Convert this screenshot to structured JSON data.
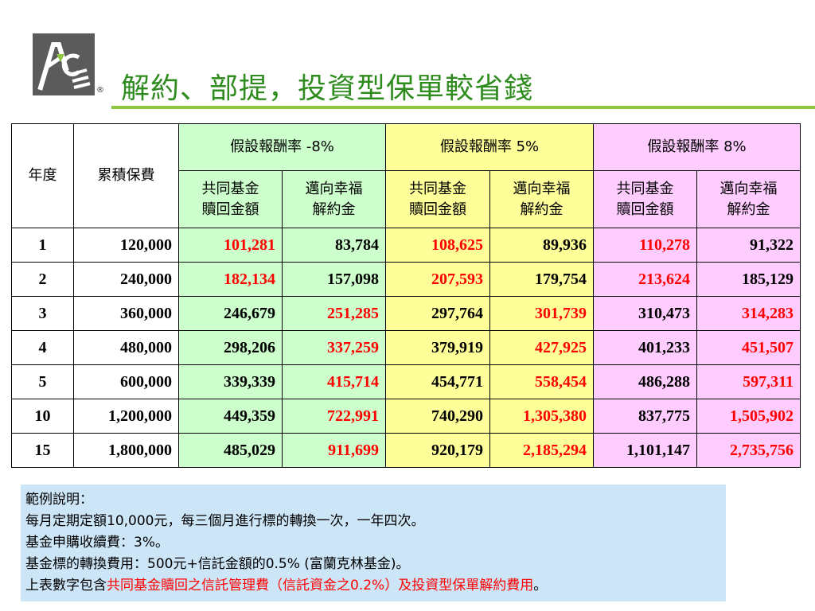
{
  "title": "解約、部提，投資型保單較省錢",
  "logo": {
    "name": "ACE logo",
    "reg_mark": "®",
    "color": "#5b5b5b",
    "accent": "#8dc63f"
  },
  "table": {
    "col_year": "年度",
    "col_premium": "累積保費",
    "groups": [
      {
        "label": "假設報酬率  -8%",
        "color": "#ccffcc"
      },
      {
        "label": "假設報酬率  5%",
        "color": "#ffff99"
      },
      {
        "label": "假設報酬率  8%",
        "color": "#ffccff"
      }
    ],
    "sub_fund": "共同基金\n贖回金額",
    "sub_policy": "邁向幸福\n解約金",
    "rows": [
      {
        "year": "1",
        "premium": "120,000",
        "v": [
          "101,281",
          "83,784",
          "108,625",
          "89,936",
          "110,278",
          "91,322"
        ]
      },
      {
        "year": "2",
        "premium": "240,000",
        "v": [
          "182,134",
          "157,098",
          "207,593",
          "179,754",
          "213,624",
          "185,129"
        ]
      },
      {
        "year": "3",
        "premium": "360,000",
        "v": [
          "246,679",
          "251,285",
          "297,764",
          "301,739",
          "310,473",
          "314,283"
        ]
      },
      {
        "year": "4",
        "premium": "480,000",
        "v": [
          "298,206",
          "337,259",
          "379,919",
          "427,925",
          "401,233",
          "451,507"
        ]
      },
      {
        "year": "5",
        "premium": "600,000",
        "v": [
          "339,339",
          "415,714",
          "454,771",
          "558,454",
          "486,288",
          "597,311"
        ]
      },
      {
        "year": "10",
        "premium": "1,200,000",
        "v": [
          "449,359",
          "722,991",
          "740,290",
          "1,305,380",
          "837,775",
          "1,505,902"
        ]
      },
      {
        "year": "15",
        "premium": "1,800,000",
        "v": [
          "485,029",
          "911,699",
          "920,179",
          "2,185,294",
          "1,101,147",
          "2,735,756"
        ]
      }
    ]
  },
  "notes": {
    "heading": "範例說明：",
    "line1": "每月定期定額10,000元，每三個月進行標的轉換一次，一年四次。",
    "line2": "基金申購收續費：3%。",
    "line3": "基金標的轉換費用：500元+信託金額的0.5% (富蘭克林基金)。",
    "line4_prefix": "上表數字包含",
    "line4_red": "共同基金贖回之信託管理費（信託資金之0.2%）及投資型保單解約費用",
    "line4_suffix": "。"
  },
  "colors": {
    "title": "#2e8b1e",
    "rule": "#8dc63f",
    "highlight": "#ff0000",
    "notes_bg": "#cce5f7"
  }
}
